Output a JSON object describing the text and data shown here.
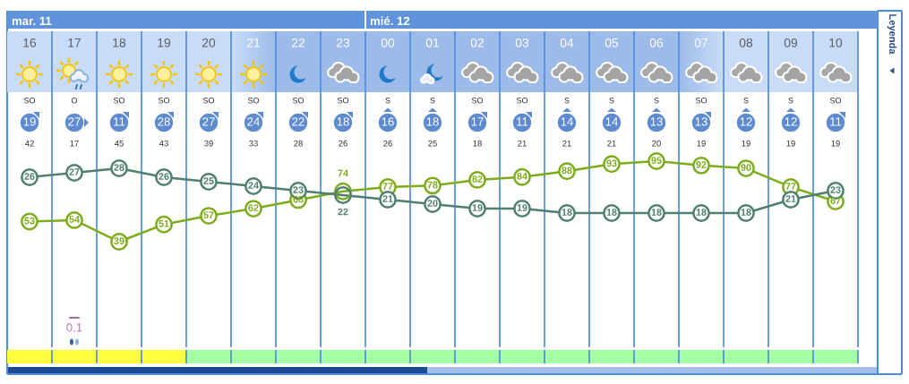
{
  "chart_data": [
    {
      "type": "other",
      "annotations": [
        "mar. 11",
        "mié. 12",
        "Leyenda"
      ]
    },
    {
      "type": "other",
      "annotations": [
        "SO",
        "O",
        "SO",
        "SO",
        "SO",
        "SO",
        "SO",
        "SO",
        "S",
        "S",
        "SO",
        "SO",
        "S",
        "S",
        "S",
        "SO",
        "S",
        "S",
        "SO"
      ]
    },
    {
      "type": "other",
      "values": [
        19,
        27,
        11,
        28,
        27,
        24,
        22,
        18,
        16,
        18,
        17,
        11,
        14,
        14,
        13,
        13,
        12,
        12,
        11
      ],
      "color": "#5e8acf",
      "data_labels": true
    },
    {
      "type": "other",
      "values": [
        42,
        17,
        45,
        43,
        39,
        33,
        28,
        26,
        26,
        25,
        18,
        21,
        21,
        21,
        20,
        19,
        19,
        19,
        19
      ],
      "color": "#333333",
      "data_labels": true
    },
    {
      "type": "line",
      "categories": [
        "16",
        "17",
        "18",
        "19",
        "20",
        "21",
        "22",
        "23",
        "00",
        "01",
        "02",
        "03",
        "04",
        "05",
        "06",
        "07",
        "08",
        "09",
        "10"
      ],
      "series": [
        {
          "color": "#4e7f70",
          "values": [
            26,
            27,
            28,
            26,
            25,
            24,
            23,
            22,
            21,
            20,
            19,
            19,
            18,
            18,
            18,
            18,
            18,
            21,
            23
          ]
        },
        {
          "axis": "y2",
          "color": "#7cac1c",
          "values": [
            53,
            54,
            39,
            51,
            57,
            62,
            68,
            74,
            77,
            78,
            82,
            84,
            88,
            93,
            95,
            92,
            90,
            77,
            67
          ]
        }
      ],
      "ylim": [
        -4.4,
        32
      ],
      "y2lim": [
        -10.8,
        102.5
      ],
      "tick_labels": "x",
      "grid": "x",
      "marker": "circle",
      "line_style": "solid",
      "data_labels": true
    },
    {
      "type": "other",
      "values": [
        null,
        0.1,
        null,
        null,
        null,
        null,
        null,
        null,
        null,
        null,
        null,
        null,
        null,
        null,
        null,
        null,
        null,
        null,
        null
      ],
      "color": "#b57ab5",
      "data_labels": true
    }
  ]
}
